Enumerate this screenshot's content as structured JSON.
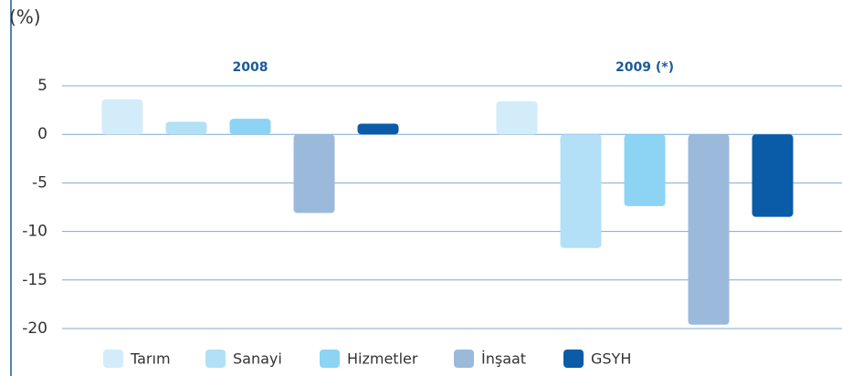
{
  "chart_data": {
    "type": "bar",
    "title": "(%)",
    "categories": [
      "2008",
      "2009 (*)"
    ],
    "series": [
      {
        "name": "Tarım",
        "color": "#d3ecf9",
        "values": [
          3.6,
          3.4
        ]
      },
      {
        "name": "Sanayi",
        "color": "#b3e0f7",
        "values": [
          1.3,
          -11.7
        ]
      },
      {
        "name": "Hizmetler",
        "color": "#8dd3f3",
        "values": [
          1.6,
          -7.4
        ]
      },
      {
        "name": "İnşaat",
        "color": "#9bbadb",
        "values": [
          -8.1,
          -19.6
        ]
      },
      {
        "name": "GSYH",
        "color": "#0a5ca8",
        "values": [
          1.1,
          -8.5
        ]
      }
    ],
    "ylim": [
      -20,
      5
    ],
    "yticks": [
      5,
      0,
      -5,
      -10,
      -15,
      -20
    ],
    "grid": true
  }
}
